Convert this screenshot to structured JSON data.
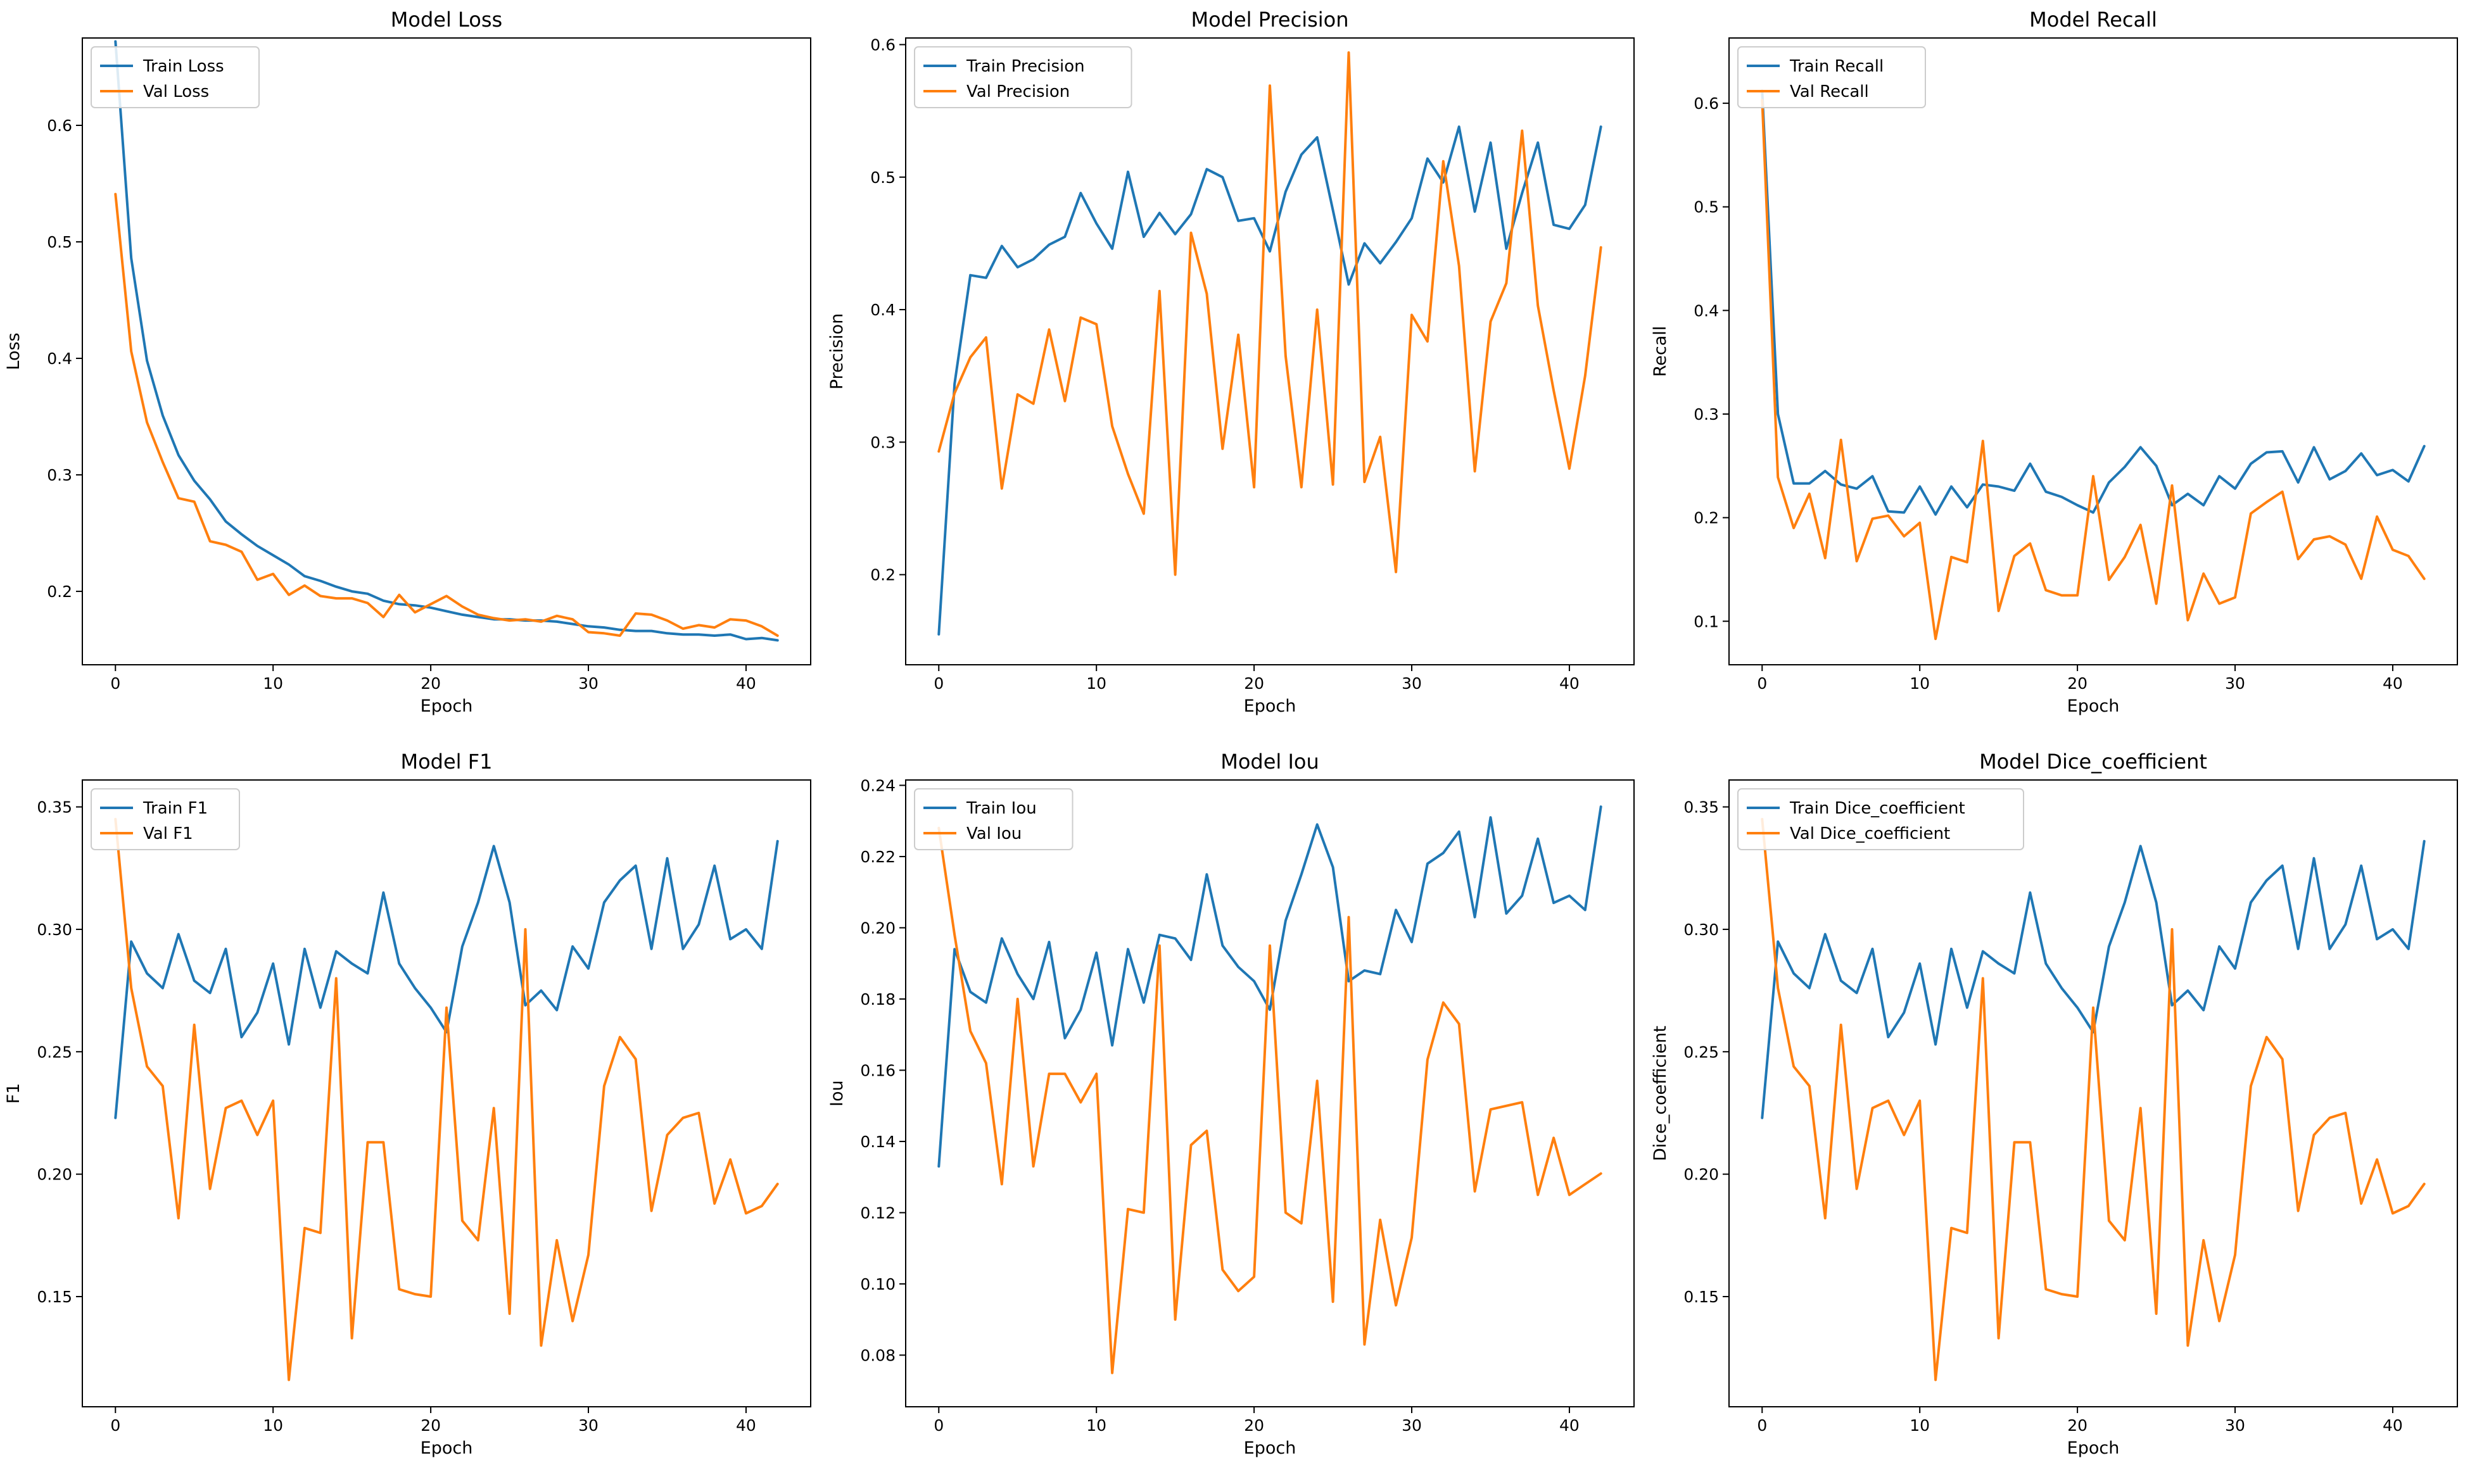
{
  "figure": {
    "colors": {
      "train": "#1f77b4",
      "val": "#ff7f0e",
      "frame": "#000000",
      "legend_border": "#cccccc"
    }
  },
  "chart_data": [
    {
      "type": "line",
      "title": "Model Loss",
      "xlabel": "Epoch",
      "ylabel": "Loss",
      "xlim": [
        -2.1,
        44.1
      ],
      "ylim": [
        0.137,
        0.675
      ],
      "xticks": [
        0,
        10,
        20,
        30,
        40
      ],
      "yticks": [
        0.2,
        0.3,
        0.4,
        0.5,
        0.6
      ],
      "ytick_labels": [
        "0.2",
        "0.3",
        "0.4",
        "0.5",
        "0.6"
      ],
      "grid": false,
      "legend": "top-left",
      "series": [
        {
          "name": "Train Loss",
          "color": "#1f77b4",
          "values": [
            0.672,
            0.486,
            0.398,
            0.351,
            0.317,
            0.295,
            0.279,
            0.26,
            0.249,
            0.239,
            0.231,
            0.223,
            0.213,
            0.209,
            0.204,
            0.2,
            0.198,
            0.192,
            0.189,
            0.188,
            0.186,
            0.183,
            0.18,
            0.178,
            0.176,
            0.176,
            0.175,
            0.175,
            0.174,
            0.172,
            0.17,
            0.169,
            0.167,
            0.166,
            0.166,
            0.164,
            0.163,
            0.163,
            0.162,
            0.163,
            0.159,
            0.16,
            0.158
          ]
        },
        {
          "name": "Val Loss",
          "color": "#ff7f0e",
          "values": [
            0.541,
            0.406,
            0.345,
            0.311,
            0.28,
            0.277,
            0.243,
            0.24,
            0.234,
            0.21,
            0.215,
            0.197,
            0.205,
            0.196,
            0.194,
            0.194,
            0.19,
            0.178,
            0.197,
            0.182,
            0.189,
            0.196,
            0.187,
            0.18,
            0.177,
            0.175,
            0.176,
            0.174,
            0.179,
            0.176,
            0.165,
            0.164,
            0.162,
            0.181,
            0.18,
            0.175,
            0.168,
            0.171,
            0.169,
            0.176,
            0.175,
            0.17,
            0.162
          ]
        }
      ]
    },
    {
      "type": "line",
      "title": "Model Precision",
      "xlabel": "Epoch",
      "ylabel": "Precision",
      "xlim": [
        -2.1,
        44.1
      ],
      "ylim": [
        0.132,
        0.605
      ],
      "xticks": [
        0,
        10,
        20,
        30,
        40
      ],
      "yticks": [
        0.2,
        0.3,
        0.4,
        0.5,
        0.6
      ],
      "ytick_labels": [
        "0.2",
        "0.3",
        "0.4",
        "0.5",
        "0.6"
      ],
      "grid": false,
      "legend": "top-left",
      "series": [
        {
          "name": "Train Precision",
          "color": "#1f77b4",
          "values": [
            0.155,
            0.344,
            0.426,
            0.424,
            0.448,
            0.432,
            0.438,
            0.449,
            0.455,
            0.488,
            0.465,
            0.446,
            0.504,
            0.455,
            0.473,
            0.457,
            0.472,
            0.506,
            0.5,
            0.467,
            0.469,
            0.444,
            0.489,
            0.517,
            0.53,
            0.475,
            0.419,
            0.45,
            0.435,
            0.451,
            0.469,
            0.514,
            0.496,
            0.538,
            0.474,
            0.526,
            0.446,
            0.488,
            0.526,
            0.464,
            0.461,
            0.479,
            0.538
          ]
        },
        {
          "name": "Val Precision",
          "color": "#ff7f0e",
          "values": [
            0.293,
            0.337,
            0.364,
            0.379,
            0.265,
            0.336,
            0.329,
            0.385,
            0.331,
            0.394,
            0.389,
            0.312,
            0.276,
            0.246,
            0.414,
            0.2,
            0.458,
            0.412,
            0.295,
            0.381,
            0.266,
            0.569,
            0.365,
            0.266,
            0.4,
            0.268,
            0.594,
            0.27,
            0.304,
            0.202,
            0.396,
            0.376,
            0.512,
            0.433,
            0.278,
            0.391,
            0.42,
            0.535,
            0.403,
            0.339,
            0.28,
            0.35,
            0.447
          ]
        }
      ]
    },
    {
      "type": "line",
      "title": "Model Recall",
      "xlabel": "Epoch",
      "ylabel": "Recall",
      "xlim": [
        -2.1,
        44.1
      ],
      "ylim": [
        0.058,
        0.663
      ],
      "xticks": [
        0,
        10,
        20,
        30,
        40
      ],
      "yticks": [
        0.1,
        0.2,
        0.3,
        0.4,
        0.5,
        0.6
      ],
      "ytick_labels": [
        "0.1",
        "0.2",
        "0.3",
        "0.4",
        "0.5",
        "0.6"
      ],
      "grid": false,
      "legend": "top-left",
      "series": [
        {
          "name": "Train Recall",
          "color": "#1f77b4",
          "values": [
            0.612,
            0.3,
            0.233,
            0.233,
            0.245,
            0.232,
            0.228,
            0.24,
            0.206,
            0.205,
            0.23,
            0.203,
            0.23,
            0.21,
            0.232,
            0.23,
            0.226,
            0.252,
            0.225,
            0.22,
            0.212,
            0.205,
            0.234,
            0.249,
            0.268,
            0.25,
            0.212,
            0.223,
            0.212,
            0.24,
            0.228,
            0.252,
            0.263,
            0.264,
            0.234,
            0.268,
            0.237,
            0.245,
            0.262,
            0.241,
            0.246,
            0.235,
            0.269
          ]
        },
        {
          "name": "Val Recall",
          "color": "#ff7f0e",
          "values": [
            0.603,
            0.239,
            0.19,
            0.223,
            0.161,
            0.275,
            0.158,
            0.199,
            0.202,
            0.182,
            0.195,
            0.083,
            0.162,
            0.157,
            0.274,
            0.11,
            0.163,
            0.175,
            0.13,
            0.125,
            0.125,
            0.24,
            0.14,
            0.162,
            0.193,
            0.117,
            0.231,
            0.101,
            0.146,
            0.117,
            0.123,
            0.204,
            0.215,
            0.225,
            0.16,
            0.179,
            0.182,
            0.174,
            0.141,
            0.201,
            0.169,
            0.163,
            0.141
          ]
        }
      ]
    },
    {
      "type": "line",
      "title": "Model F1",
      "xlabel": "Epoch",
      "ylabel": "F1",
      "xlim": [
        -2.1,
        44.1
      ],
      "ylim": [
        0.105,
        0.361
      ],
      "xticks": [
        0,
        10,
        20,
        30,
        40
      ],
      "yticks": [
        0.15,
        0.2,
        0.25,
        0.3,
        0.35
      ],
      "ytick_labels": [
        "0.15",
        "0.20",
        "0.25",
        "0.30",
        "0.35"
      ],
      "grid": false,
      "legend": "top-left",
      "series": [
        {
          "name": "Train F1",
          "color": "#1f77b4",
          "values": [
            0.223,
            0.295,
            0.282,
            0.276,
            0.298,
            0.279,
            0.274,
            0.292,
            0.256,
            0.266,
            0.286,
            0.253,
            0.292,
            0.268,
            0.291,
            0.286,
            0.282,
            0.315,
            0.286,
            0.276,
            0.268,
            0.258,
            0.293,
            0.311,
            0.334,
            0.311,
            0.269,
            0.275,
            0.267,
            0.293,
            0.284,
            0.311,
            0.32,
            0.326,
            0.292,
            0.329,
            0.292,
            0.302,
            0.326,
            0.296,
            0.3,
            0.292,
            0.336
          ]
        },
        {
          "name": "Val F1",
          "color": "#ff7f0e",
          "values": [
            0.345,
            0.276,
            0.244,
            0.236,
            0.182,
            0.261,
            0.194,
            0.227,
            0.23,
            0.216,
            0.23,
            0.116,
            0.178,
            0.176,
            0.28,
            0.133,
            0.213,
            0.213,
            0.153,
            0.151,
            0.15,
            0.268,
            0.181,
            0.173,
            0.227,
            0.143,
            0.3,
            0.13,
            0.173,
            0.14,
            0.167,
            0.236,
            0.256,
            0.247,
            0.185,
            0.216,
            0.223,
            0.225,
            0.188,
            0.206,
            0.184,
            0.187,
            0.196
          ]
        }
      ]
    },
    {
      "type": "line",
      "title": "Model Iou",
      "xlabel": "Epoch",
      "ylabel": "Iou",
      "xlim": [
        -2.1,
        44.1
      ],
      "ylim": [
        0.0655,
        0.2415
      ],
      "xticks": [
        0,
        10,
        20,
        30,
        40
      ],
      "yticks": [
        0.08,
        0.1,
        0.12,
        0.14,
        0.16,
        0.18,
        0.2,
        0.22,
        0.24
      ],
      "ytick_labels": [
        "0.08",
        "0.10",
        "0.12",
        "0.14",
        "0.16",
        "0.18",
        "0.20",
        "0.22",
        "0.24"
      ],
      "grid": false,
      "legend": "top-left",
      "series": [
        {
          "name": "Train Iou",
          "color": "#1f77b4",
          "values": [
            0.133,
            0.194,
            0.182,
            0.179,
            0.197,
            0.187,
            0.18,
            0.196,
            0.169,
            0.177,
            0.193,
            0.167,
            0.194,
            0.179,
            0.198,
            0.197,
            0.191,
            0.215,
            0.195,
            0.189,
            0.185,
            0.177,
            0.202,
            0.215,
            0.229,
            0.217,
            0.185,
            0.188,
            0.187,
            0.205,
            0.196,
            0.218,
            0.221,
            0.227,
            0.203,
            0.231,
            0.204,
            0.209,
            0.225,
            0.207,
            0.209,
            0.205,
            0.234
          ]
        },
        {
          "name": "Val Iou",
          "color": "#ff7f0e",
          "values": [
            0.228,
            0.198,
            0.171,
            0.162,
            0.128,
            0.18,
            0.133,
            0.159,
            0.159,
            0.151,
            0.159,
            0.075,
            0.121,
            0.12,
            0.195,
            0.09,
            0.139,
            0.143,
            0.104,
            0.098,
            0.102,
            0.195,
            0.12,
            0.117,
            0.157,
            0.095,
            0.203,
            0.083,
            0.118,
            0.094,
            0.113,
            0.163,
            0.179,
            0.173,
            0.126,
            0.149,
            0.15,
            0.151,
            0.125,
            0.141,
            0.125,
            0.128,
            0.131
          ]
        }
      ]
    },
    {
      "type": "line",
      "title": "Model Dice_coefficient",
      "xlabel": "Epoch",
      "ylabel": "Dice_coefficient",
      "xlim": [
        -2.1,
        44.1
      ],
      "ylim": [
        0.105,
        0.361
      ],
      "xticks": [
        0,
        10,
        20,
        30,
        40
      ],
      "yticks": [
        0.15,
        0.2,
        0.25,
        0.3,
        0.35
      ],
      "ytick_labels": [
        "0.15",
        "0.20",
        "0.25",
        "0.30",
        "0.35"
      ],
      "grid": false,
      "legend": "top-left",
      "series": [
        {
          "name": "Train Dice_coefficient",
          "color": "#1f77b4",
          "values": [
            0.223,
            0.295,
            0.282,
            0.276,
            0.298,
            0.279,
            0.274,
            0.292,
            0.256,
            0.266,
            0.286,
            0.253,
            0.292,
            0.268,
            0.291,
            0.286,
            0.282,
            0.315,
            0.286,
            0.276,
            0.268,
            0.258,
            0.293,
            0.311,
            0.334,
            0.311,
            0.269,
            0.275,
            0.267,
            0.293,
            0.284,
            0.311,
            0.32,
            0.326,
            0.292,
            0.329,
            0.292,
            0.302,
            0.326,
            0.296,
            0.3,
            0.292,
            0.336
          ]
        },
        {
          "name": "Val Dice_coefficient",
          "color": "#ff7f0e",
          "values": [
            0.345,
            0.276,
            0.244,
            0.236,
            0.182,
            0.261,
            0.194,
            0.227,
            0.23,
            0.216,
            0.23,
            0.116,
            0.178,
            0.176,
            0.28,
            0.133,
            0.213,
            0.213,
            0.153,
            0.151,
            0.15,
            0.268,
            0.181,
            0.173,
            0.227,
            0.143,
            0.3,
            0.13,
            0.173,
            0.14,
            0.167,
            0.236,
            0.256,
            0.247,
            0.185,
            0.216,
            0.223,
            0.225,
            0.188,
            0.206,
            0.184,
            0.187,
            0.196
          ]
        }
      ]
    }
  ]
}
